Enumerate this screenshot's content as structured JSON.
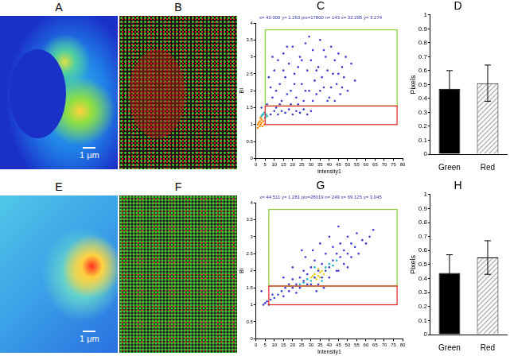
{
  "panels": [
    {
      "label": "A",
      "scale_bar": "1 μm"
    },
    {
      "label": "B"
    },
    {
      "label": "E",
      "scale_bar": "1 μm"
    },
    {
      "label": "F"
    }
  ],
  "chart_data": [
    {
      "type": "scatter",
      "title": "C",
      "subtitle": "x= 40.000 y= 1.263 pix=17800 n= 143 x= 32.295 y= 3.274",
      "xlabel": "Intensity1",
      "ylabel": "BI",
      "xlim": [
        0,
        80
      ],
      "xticks": [
        0,
        5,
        10,
        15,
        20,
        25,
        30,
        35,
        40,
        45,
        50,
        55,
        60,
        65,
        70,
        75,
        80
      ],
      "ylim": [
        0,
        4
      ],
      "yticks": [
        0,
        0.5,
        1,
        1.5,
        2,
        2.5,
        3,
        3.5,
        4
      ],
      "grid": false,
      "series": [
        {
          "color": "#3a3ad0",
          "x": [
            6,
            8,
            9,
            10,
            11,
            12,
            13,
            14,
            15,
            16,
            17,
            18,
            19,
            20,
            21,
            22,
            23,
            24,
            25,
            26,
            27,
            28,
            29,
            30,
            31,
            32,
            33,
            34,
            35,
            36,
            37,
            38,
            39,
            40,
            41,
            42,
            43,
            44,
            45,
            46,
            47,
            48,
            50,
            52,
            54
          ],
          "values": [
            1.6,
            2.1,
            1.8,
            2.6,
            1.5,
            2.9,
            2.2,
            1.7,
            3.1,
            2.4,
            1.9,
            2.8,
            2.0,
            3.3,
            2.5,
            1.8,
            2.7,
            3.0,
            2.2,
            1.7,
            3.4,
            2.6,
            2.0,
            2.9,
            3.2,
            2.3,
            1.9,
            2.7,
            3.5,
            2.4,
            2.1,
            3.0,
            2.6,
            1.8,
            3.3,
            2.5,
            2.9,
            2.2,
            3.1,
            1.9,
            2.7,
            2.4,
            2.0,
            2.8,
            2.3
          ]
        },
        {
          "color": "#3a3ad0",
          "x": [
            7,
            9,
            11,
            13,
            15,
            17,
            19,
            21,
            23,
            25,
            27,
            29,
            31,
            33,
            35,
            37,
            39,
            41,
            43,
            45,
            47,
            49
          ],
          "values": [
            2.4,
            3.0,
            2.0,
            1.6,
            2.6,
            3.3,
            1.6,
            2.2,
            1.6,
            2.9,
            2.0,
            3.6,
            1.7,
            2.6,
            2.0,
            3.2,
            1.7,
            2.1,
            1.7,
            2.5,
            2.1,
            3.0
          ]
        },
        {
          "color": "#3a3ad0",
          "x": [
            3,
            8,
            10,
            12,
            14,
            16,
            18,
            20,
            22,
            24,
            26,
            28,
            30
          ],
          "values": [
            1.5,
            1.3,
            1.4,
            1.3,
            1.4,
            1.35,
            1.45,
            1.3,
            1.4,
            1.35,
            1.45,
            1.3,
            1.4
          ]
        },
        {
          "color": "#20b8c0",
          "x": [
            3,
            4,
            5,
            5.5,
            4.5,
            6,
            3.5
          ],
          "values": [
            1.25,
            1.3,
            1.2,
            1.3,
            1.35,
            1.25,
            1.3
          ]
        },
        {
          "color": "#ff8800",
          "x": [
            1,
            1.5,
            2,
            2,
            2.5,
            3,
            3,
            3.5,
            4,
            4.5,
            1,
            2.5
          ],
          "values": [
            1.0,
            1.05,
            0.95,
            1.1,
            1.0,
            1.05,
            1.15,
            0.95,
            1.1,
            1.0,
            0.9,
            1.2
          ]
        }
      ],
      "gates": [
        {
          "color": "#88cc33",
          "x": [
            5,
            77
          ],
          "y": [
            1.55,
            3.8
          ]
        },
        {
          "color": "#e02020",
          "x": [
            5,
            77
          ],
          "y": [
            1.0,
            1.55
          ]
        }
      ]
    },
    {
      "type": "bar",
      "title": "D",
      "ylabel": "Pixels",
      "categories": [
        "Green",
        "Red"
      ],
      "values": [
        0.47,
        0.51
      ],
      "errors": [
        0.13,
        0.13
      ],
      "colors": [
        "#000000",
        "#b0b0b0"
      ],
      "ylim": [
        0,
        1
      ],
      "yticks": [
        0,
        0.1,
        0.2,
        0.3,
        0.4,
        0.5,
        0.6,
        0.7,
        0.8,
        0.9,
        1
      ],
      "grid": false
    },
    {
      "type": "scatter",
      "title": "G",
      "subtitle": "x= 44.511 y= 1.281 pix=28019 n= 249 x= 69.125 y= 3.045",
      "xlabel": "Intensity1",
      "ylabel": "BI",
      "xlim": [
        0,
        80
      ],
      "xticks": [
        0,
        5,
        10,
        15,
        20,
        25,
        30,
        35,
        40,
        45,
        50,
        55,
        60,
        65,
        70,
        75,
        80
      ],
      "ylim": [
        0,
        4
      ],
      "yticks": [
        0,
        0.5,
        1,
        1.5,
        2,
        2.5,
        3,
        3.5,
        4
      ],
      "grid": false,
      "series": [
        {
          "color": "#3a3ad0",
          "x": [
            10,
            12,
            14,
            15,
            16,
            18,
            18,
            20,
            20,
            22,
            22,
            24,
            24,
            26,
            26,
            28,
            28,
            30,
            30,
            32,
            32,
            34,
            34,
            36,
            36,
            38,
            38,
            40,
            40,
            42,
            42,
            44,
            44,
            46,
            46,
            48,
            48,
            50,
            50,
            52,
            52,
            54,
            55,
            56,
            58,
            60,
            62,
            64
          ],
          "values": [
            1.2,
            1.3,
            1.4,
            1.25,
            1.5,
            1.4,
            1.6,
            1.5,
            1.75,
            1.6,
            1.35,
            1.8,
            1.5,
            1.7,
            2.0,
            1.6,
            1.9,
            2.1,
            1.6,
            1.8,
            2.3,
            2.0,
            1.6,
            2.2,
            1.8,
            2.0,
            2.5,
            2.1,
            1.8,
            2.3,
            2.7,
            2.0,
            2.5,
            2.4,
            2.8,
            2.2,
            2.6,
            2.5,
            3.0,
            2.4,
            2.8,
            2.7,
            3.1,
            2.5,
            2.9,
            2.8,
            3.0,
            3.2
          ]
        },
        {
          "color": "#3a3ad0",
          "x": [
            27,
            31,
            35,
            45,
            40,
            25,
            20,
            15,
            33,
            37,
            45,
            50,
            5,
            6,
            7,
            8,
            4,
            9,
            3
          ],
          "values": [
            2.4,
            2.6,
            2.8,
            3.3,
            3.0,
            2.6,
            2.1,
            1.8,
            1.4,
            1.5,
            2.0,
            2.1,
            1.05,
            1.1,
            1.0,
            1.15,
            1.0,
            1.3,
            1.4
          ]
        },
        {
          "color": "#20b8c0",
          "x": [
            26,
            28,
            38,
            40,
            42,
            30,
            24,
            44,
            36,
            32
          ],
          "values": [
            1.65,
            1.75,
            2.1,
            2.2,
            2.15,
            1.7,
            1.6,
            2.3,
            1.7,
            2.1
          ]
        },
        {
          "color": "#e8d020",
          "x": [
            30,
            32,
            34,
            35,
            36,
            33,
            31,
            37,
            35,
            34
          ],
          "values": [
            1.8,
            1.9,
            1.85,
            1.95,
            2.0,
            1.75,
            1.85,
            1.9,
            1.8,
            2.05
          ]
        }
      ],
      "gates": [
        {
          "color": "#88cc33",
          "x": [
            7,
            77
          ],
          "y": [
            1.55,
            3.8
          ]
        },
        {
          "color": "#e02020",
          "x": [
            7,
            77
          ],
          "y": [
            1.0,
            1.55
          ]
        }
      ]
    },
    {
      "type": "bar",
      "title": "H",
      "ylabel": "Pixels",
      "categories": [
        "Green",
        "Red"
      ],
      "values": [
        0.44,
        0.55
      ],
      "errors": [
        0.13,
        0.12
      ],
      "colors": [
        "#000000",
        "#b0b0b0"
      ],
      "ylim": [
        0,
        1
      ],
      "yticks": [
        0,
        0.1,
        0.2,
        0.3,
        0.4,
        0.5,
        0.6,
        0.7,
        0.8,
        0.9,
        1
      ],
      "grid": false
    }
  ]
}
